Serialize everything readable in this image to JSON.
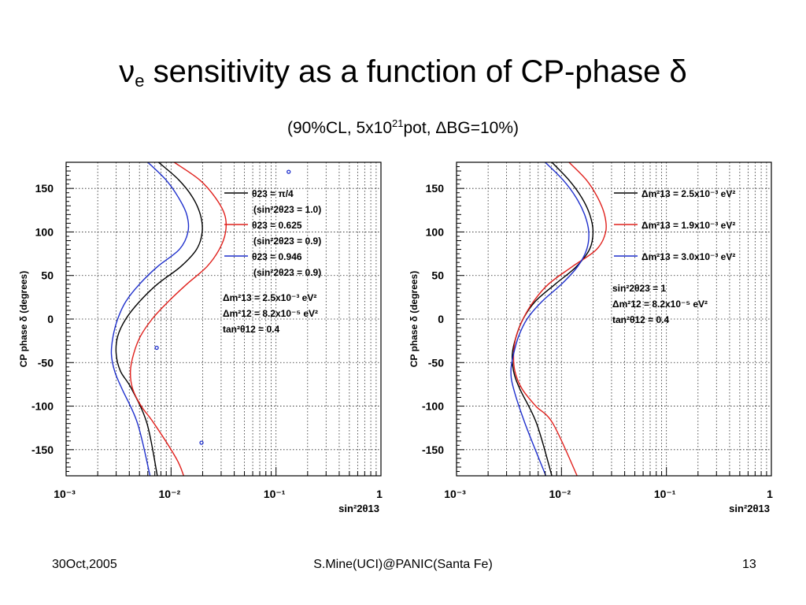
{
  "slide": {
    "title_symbol": "ν",
    "title_subscript": "e",
    "title_rest": " sensitivity as a function of CP-phase δ",
    "subtitle_pre": "(90%CL, 5x10",
    "subtitle_sup": "21",
    "subtitle_post": "pot, ΔBG=10%)",
    "footer_left": "30Oct,2005",
    "footer_center": "S.Mine(UCI)@PANIC(Santa Fe)",
    "footer_right": "13"
  },
  "colors": {
    "black": "#000000",
    "red": "#e0201c",
    "blue": "#1e2fcc"
  },
  "chart_data": [
    {
      "type": "line",
      "xscale": "log",
      "xlim": [
        0.001,
        1
      ],
      "ylim": [
        -180,
        180
      ],
      "grid": true,
      "ylabel": "CP phase δ (degrees)",
      "xlabel": "sin²2θ13",
      "xticks": [
        "10⁻³",
        "10⁻²",
        "10⁻¹",
        "1"
      ],
      "yticks": [
        150,
        100,
        50,
        0,
        -50,
        -100,
        -150
      ],
      "legend_position": "top-right",
      "legend": [
        {
          "line1": "θ23 = π/4",
          "line2": "(sin²2θ23 = 1.0)",
          "color": "black"
        },
        {
          "line1": "θ23 = 0.625",
          "line2": "(sin²2θ23 = 0.9)",
          "color": "red"
        },
        {
          "line1": "θ23 = 0.946",
          "line2": "(sin²2θ23 = 0.9)",
          "color": "blue"
        }
      ],
      "annotations": [
        "Δm²13 = 2.5x10⁻³ eV²",
        "Δm²12 = 8.2x10⁻⁵ eV²",
        "tan²θ12 = 0.4"
      ],
      "series": [
        {
          "color": "black",
          "x": [
            0.0076,
            0.0118,
            0.016,
            0.019,
            0.0198,
            0.0175,
            0.0123,
            0.0074,
            0.005,
            0.0037,
            0.0031,
            0.003,
            0.0033,
            0.0042,
            0.0059,
            0.0074
          ],
          "y": [
            180,
            160,
            140,
            120,
            100,
            80,
            60,
            40,
            20,
            0,
            -20,
            -40,
            -60,
            -80,
            -120,
            -180
          ]
        },
        {
          "color": "red",
          "x": [
            0.0107,
            0.0186,
            0.0262,
            0.0324,
            0.0331,
            0.0288,
            0.0219,
            0.0141,
            0.0094,
            0.0066,
            0.0051,
            0.0044,
            0.0041,
            0.0043,
            0.0052,
            0.0069,
            0.0112,
            0.0132
          ],
          "y": [
            180,
            160,
            140,
            120,
            100,
            80,
            60,
            40,
            20,
            0,
            -20,
            -40,
            -60,
            -80,
            -100,
            -120,
            -160,
            -180
          ]
        },
        {
          "color": "blue",
          "x": [
            0.006,
            0.0089,
            0.0117,
            0.0141,
            0.0145,
            0.012,
            0.0074,
            0.005,
            0.0037,
            0.0031,
            0.0028,
            0.0027,
            0.0029,
            0.0034,
            0.0048,
            0.0063
          ],
          "y": [
            180,
            160,
            140,
            120,
            100,
            80,
            60,
            40,
            20,
            0,
            -20,
            -40,
            -60,
            -80,
            -120,
            -180
          ]
        }
      ],
      "markers": [
        {
          "x": 0.132,
          "y": 169,
          "color": "blue"
        },
        {
          "x": 0.0073,
          "y": -33,
          "color": "blue"
        },
        {
          "x": 0.0195,
          "y": -142,
          "color": "blue"
        }
      ]
    },
    {
      "type": "line",
      "xscale": "log",
      "xlim": [
        0.001,
        1
      ],
      "ylim": [
        -180,
        180
      ],
      "grid": true,
      "ylabel": "CP phase δ (degrees)",
      "xlabel": "sin²2θ13",
      "xticks": [
        "10⁻³",
        "10⁻²",
        "10⁻¹",
        "1"
      ],
      "yticks": [
        150,
        100,
        50,
        0,
        -50,
        -100,
        -150
      ],
      "legend_position": "top-right",
      "legend": [
        {
          "line1": "Δm²13 = 2.5x10⁻³ eV²",
          "color": "black"
        },
        {
          "line1": "Δm²13 = 1.9x10⁻³ eV²",
          "color": "red"
        },
        {
          "line1": "Δm²13 = 3.0x10⁻³ eV²",
          "color": "blue"
        }
      ],
      "annotations": [
        "sin²2θ23 = 1",
        "Δm²12 = 8.2x10⁻⁵ eV²",
        "tan²θ12 = 0.4"
      ],
      "series": [
        {
          "color": "black",
          "x": [
            0.0081,
            0.0117,
            0.0155,
            0.0186,
            0.02,
            0.0185,
            0.0138,
            0.0087,
            0.0056,
            0.0043,
            0.0037,
            0.0034,
            0.0035,
            0.004,
            0.0058,
            0.0081
          ],
          "y": [
            180,
            160,
            140,
            120,
            100,
            80,
            60,
            40,
            20,
            0,
            -20,
            -40,
            -60,
            -80,
            -120,
            -180
          ]
        },
        {
          "color": "red",
          "x": [
            0.0118,
            0.0172,
            0.022,
            0.0257,
            0.0264,
            0.0216,
            0.0126,
            0.0075,
            0.0054,
            0.0043,
            0.0037,
            0.0035,
            0.0036,
            0.0042,
            0.0057,
            0.0083,
            0.0141
          ],
          "y": [
            180,
            160,
            140,
            120,
            100,
            80,
            60,
            40,
            20,
            0,
            -20,
            -40,
            -60,
            -80,
            -100,
            -120,
            -180
          ]
        },
        {
          "color": "blue",
          "x": [
            0.007,
            0.0103,
            0.0137,
            0.0166,
            0.0182,
            0.0174,
            0.0142,
            0.01,
            0.0065,
            0.0047,
            0.0039,
            0.0035,
            0.0033,
            0.0035,
            0.0045,
            0.0071
          ],
          "y": [
            180,
            160,
            140,
            120,
            100,
            80,
            60,
            40,
            20,
            0,
            -20,
            -40,
            -60,
            -80,
            -120,
            -180
          ]
        }
      ],
      "markers": []
    }
  ]
}
